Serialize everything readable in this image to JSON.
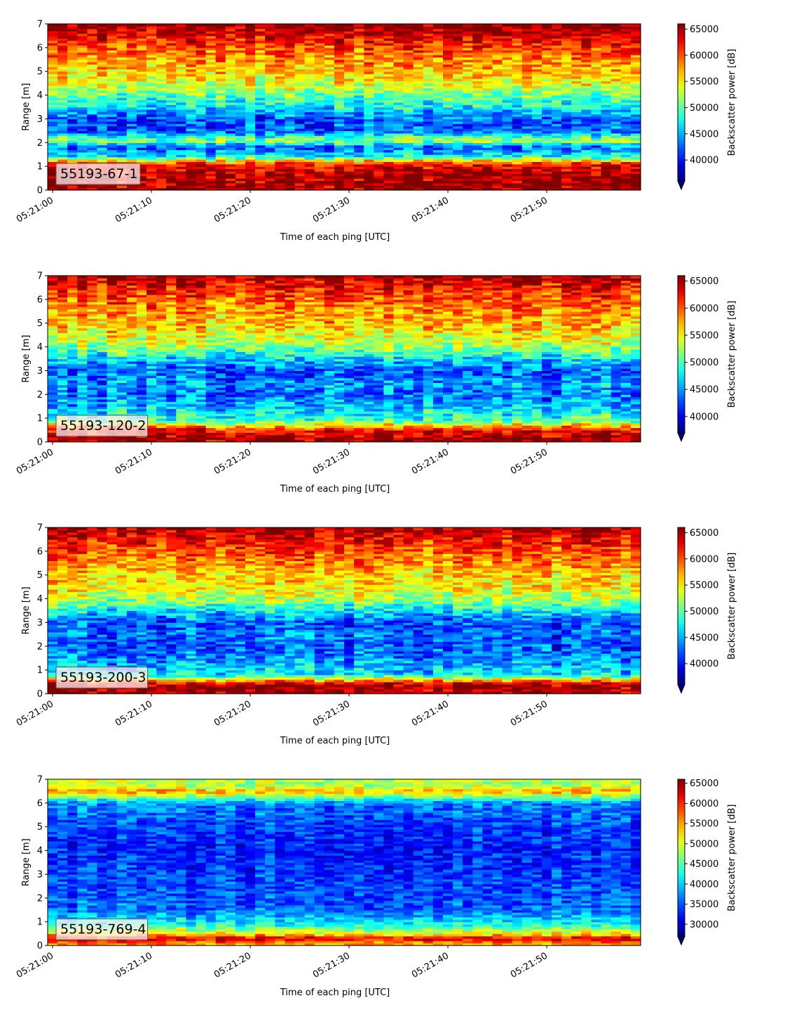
{
  "chart_data": [
    {
      "type": "heatmap",
      "label": "55193-67-1",
      "xlabel": "Time of each ping [UTC]",
      "ylabel": "Range [m]",
      "colorbar_label": "Backscatter power [dB]",
      "colormap": "jet",
      "xticks": [
        "05:21:00",
        "05:21:10",
        "05:21:20",
        "05:21:30",
        "05:21:40",
        "05:21:50"
      ],
      "x_range_seconds": [
        -0.5,
        59.5
      ],
      "yticks": [
        0,
        1,
        2,
        3,
        4,
        5,
        6,
        7
      ],
      "ylim": [
        0,
        7
      ],
      "clim": [
        36000,
        66000
      ],
      "cticks": [
        40000,
        45000,
        50000,
        55000,
        60000,
        65000
      ],
      "colorbar_extend": "min",
      "range_profile": [
        {
          "range": 0.1,
          "value": 65000
        },
        {
          "range": 0.6,
          "value": 65000
        },
        {
          "range": 1.1,
          "value": 62000
        },
        {
          "range": 1.4,
          "value": 48000
        },
        {
          "range": 1.8,
          "value": 42000
        },
        {
          "range": 2.1,
          "value": 52000
        },
        {
          "range": 2.5,
          "value": 42000
        },
        {
          "range": 3.0,
          "value": 42000
        },
        {
          "range": 3.5,
          "value": 47000
        },
        {
          "range": 4.0,
          "value": 50000
        },
        {
          "range": 4.5,
          "value": 54000
        },
        {
          "range": 5.0,
          "value": 56000
        },
        {
          "range": 5.5,
          "value": 58000
        },
        {
          "range": 6.0,
          "value": 60000
        },
        {
          "range": 6.5,
          "value": 63000
        },
        {
          "range": 7.0,
          "value": 66000
        }
      ]
    },
    {
      "type": "heatmap",
      "label": "55193-120-2",
      "xlabel": "Time of each ping [UTC]",
      "ylabel": "Range [m]",
      "colorbar_label": "Backscatter power [dB]",
      "colormap": "jet",
      "xticks": [
        "05:21:00",
        "05:21:10",
        "05:21:20",
        "05:21:30",
        "05:21:40",
        "05:21:50"
      ],
      "x_range_seconds": [
        -0.5,
        59.5
      ],
      "yticks": [
        0,
        1,
        2,
        3,
        4,
        5,
        6,
        7
      ],
      "ylim": [
        0,
        7
      ],
      "clim": [
        37000,
        66000
      ],
      "cticks": [
        40000,
        45000,
        50000,
        55000,
        60000,
        65000
      ],
      "colorbar_extend": "min",
      "range_profile": [
        {
          "range": 0.1,
          "value": 65000
        },
        {
          "range": 0.5,
          "value": 63000
        },
        {
          "range": 0.9,
          "value": 50000
        },
        {
          "range": 1.5,
          "value": 46000
        },
        {
          "range": 2.0,
          "value": 44000
        },
        {
          "range": 2.5,
          "value": 45000
        },
        {
          "range": 3.0,
          "value": 43000
        },
        {
          "range": 3.5,
          "value": 47000
        },
        {
          "range": 4.0,
          "value": 52000
        },
        {
          "range": 4.5,
          "value": 55000
        },
        {
          "range": 5.0,
          "value": 57000
        },
        {
          "range": 5.5,
          "value": 58000
        },
        {
          "range": 6.0,
          "value": 60000
        },
        {
          "range": 6.5,
          "value": 62000
        },
        {
          "range": 7.0,
          "value": 65000
        }
      ]
    },
    {
      "type": "heatmap",
      "label": "55193-200-3",
      "xlabel": "Time of each ping [UTC]",
      "ylabel": "Range [m]",
      "colorbar_label": "Backscatter power [dB]",
      "colormap": "jet",
      "xticks": [
        "05:21:00",
        "05:21:10",
        "05:21:20",
        "05:21:30",
        "05:21:40",
        "05:21:50"
      ],
      "x_range_seconds": [
        -0.5,
        59.5
      ],
      "yticks": [
        0,
        1,
        2,
        3,
        4,
        5,
        6,
        7
      ],
      "ylim": [
        0,
        7
      ],
      "clim": [
        36000,
        66000
      ],
      "cticks": [
        40000,
        45000,
        50000,
        55000,
        60000,
        65000
      ],
      "colorbar_extend": "min",
      "range_profile": [
        {
          "range": 0.1,
          "value": 65000
        },
        {
          "range": 0.4,
          "value": 65000
        },
        {
          "range": 0.8,
          "value": 47000
        },
        {
          "range": 1.2,
          "value": 45000
        },
        {
          "range": 2.0,
          "value": 42000
        },
        {
          "range": 2.5,
          "value": 43000
        },
        {
          "range": 3.0,
          "value": 42000
        },
        {
          "range": 3.5,
          "value": 47000
        },
        {
          "range": 4.0,
          "value": 52000
        },
        {
          "range": 4.5,
          "value": 55000
        },
        {
          "range": 5.0,
          "value": 56000
        },
        {
          "range": 5.5,
          "value": 58000
        },
        {
          "range": 6.0,
          "value": 60000
        },
        {
          "range": 6.5,
          "value": 62000
        },
        {
          "range": 7.0,
          "value": 65000
        }
      ]
    },
    {
      "type": "heatmap",
      "label": "55193-769-4",
      "xlabel": "Time of each ping [UTC]",
      "ylabel": "Range [m]",
      "colorbar_label": "Backscatter power [dB]",
      "colormap": "jet",
      "xticks": [
        "05:21:00",
        "05:21:10",
        "05:21:20",
        "05:21:30",
        "05:21:40",
        "05:21:50"
      ],
      "x_range_seconds": [
        -0.5,
        59.5
      ],
      "yticks": [
        0,
        1,
        2,
        3,
        4,
        5,
        6,
        7
      ],
      "ylim": [
        0,
        7
      ],
      "clim": [
        27000,
        66000
      ],
      "cticks": [
        30000,
        35000,
        40000,
        45000,
        50000,
        55000,
        60000,
        65000
      ],
      "colorbar_extend": "min",
      "range_profile": [
        {
          "range": 0.1,
          "value": 55000
        },
        {
          "range": 0.3,
          "value": 63000
        },
        {
          "range": 0.5,
          "value": 52000
        },
        {
          "range": 0.9,
          "value": 42000
        },
        {
          "range": 1.5,
          "value": 36000
        },
        {
          "range": 2.0,
          "value": 35000
        },
        {
          "range": 3.0,
          "value": 34000
        },
        {
          "range": 4.0,
          "value": 33000
        },
        {
          "range": 5.0,
          "value": 34000
        },
        {
          "range": 6.0,
          "value": 37000
        },
        {
          "range": 6.5,
          "value": 55000
        },
        {
          "range": 6.8,
          "value": 47000
        },
        {
          "range": 7.0,
          "value": 50000
        }
      ]
    }
  ]
}
